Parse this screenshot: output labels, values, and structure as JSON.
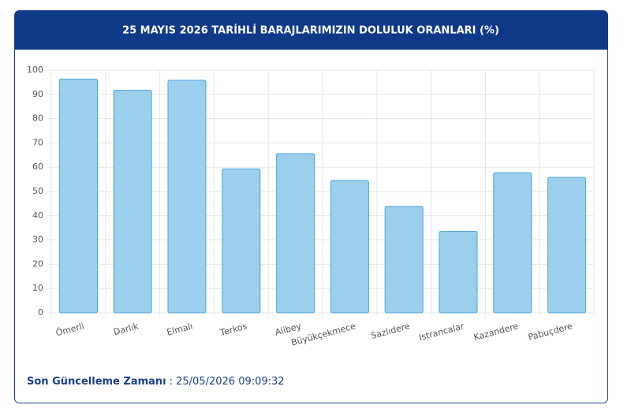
{
  "chart_data": {
    "type": "bar",
    "title": "25 MAYIS 2026 TARİHLİ BARAJLARIMIZIN DOLULUK ORANLARI (%)",
    "categories": [
      "Ömerli",
      "Darlık",
      "Elmalı",
      "Terkos",
      "Alibey",
      "Büyükçekmece",
      "Sazlıdere",
      "Istrancalar",
      "Kazandere",
      "Pabuçdere"
    ],
    "values": [
      96.3,
      91.7,
      95.8,
      59.3,
      65.6,
      54.5,
      43.8,
      33.6,
      57.7,
      55.8
    ],
    "color": "#9bcfec",
    "ylim": [
      0,
      100
    ],
    "yticks": [
      0,
      10,
      20,
      30,
      40,
      50,
      60,
      70,
      80,
      90,
      100
    ],
    "grid": true
  },
  "footer": {
    "label": "Son Güncelleme Zamanı",
    "value": ": 25/05/2026 09:09:32"
  }
}
